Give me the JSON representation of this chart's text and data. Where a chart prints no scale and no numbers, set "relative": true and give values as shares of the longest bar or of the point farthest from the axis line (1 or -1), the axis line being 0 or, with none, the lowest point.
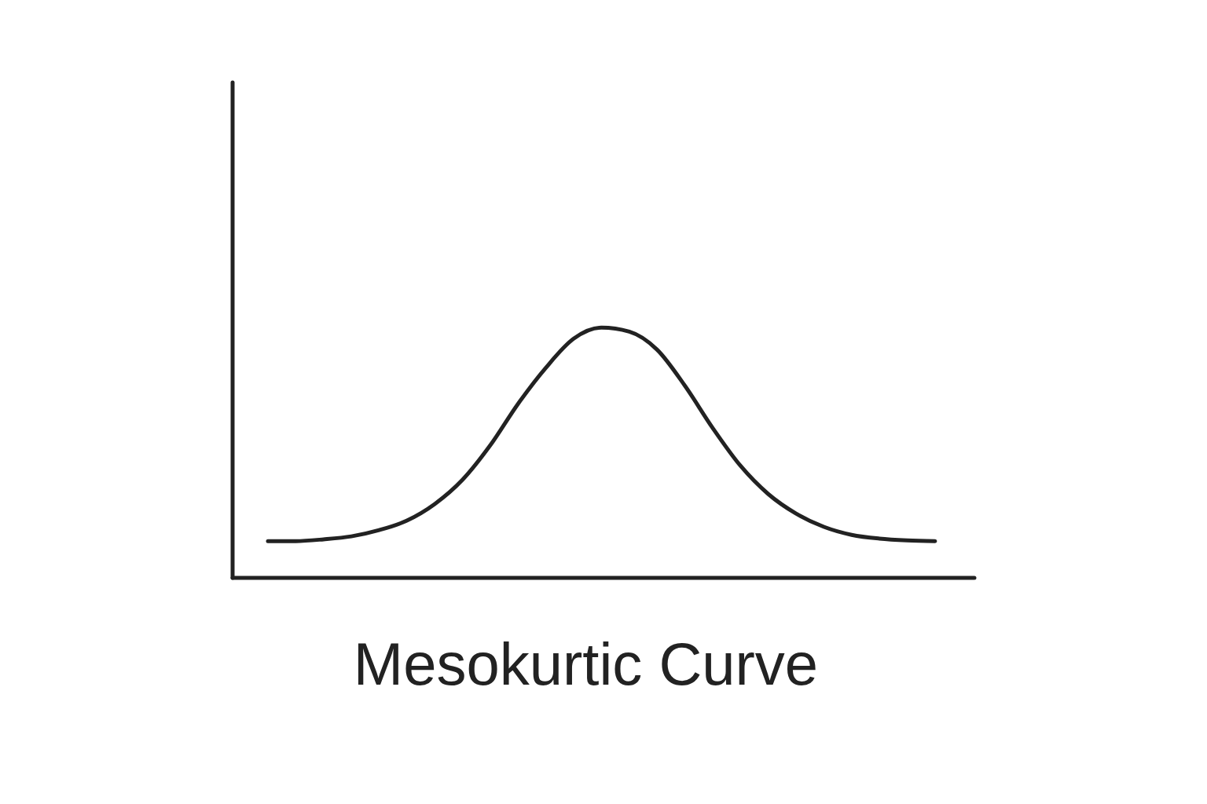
{
  "chart_data": {
    "type": "line",
    "title": "Mesokurtic Curve",
    "relative": true,
    "tick_labels": false,
    "grid": false,
    "categories": [
      null,
      null,
      null,
      null,
      null,
      null,
      null,
      null,
      null,
      null,
      null,
      null,
      null,
      null,
      null,
      null,
      null,
      null,
      null,
      null,
      null,
      null,
      null,
      null,
      null
    ],
    "series": [
      {
        "color": "#222222",
        "values": [
          0.147,
          0.147,
          0.154,
          0.166,
          0.191,
          0.229,
          0.295,
          0.392,
          0.53,
          0.696,
          0.84,
          0.956,
          1,
          0.984,
          0.912,
          0.768,
          0.599,
          0.448,
          0.335,
          0.257,
          0.204,
          0.172,
          0.157,
          0.15,
          0.147
        ]
      }
    ]
  }
}
